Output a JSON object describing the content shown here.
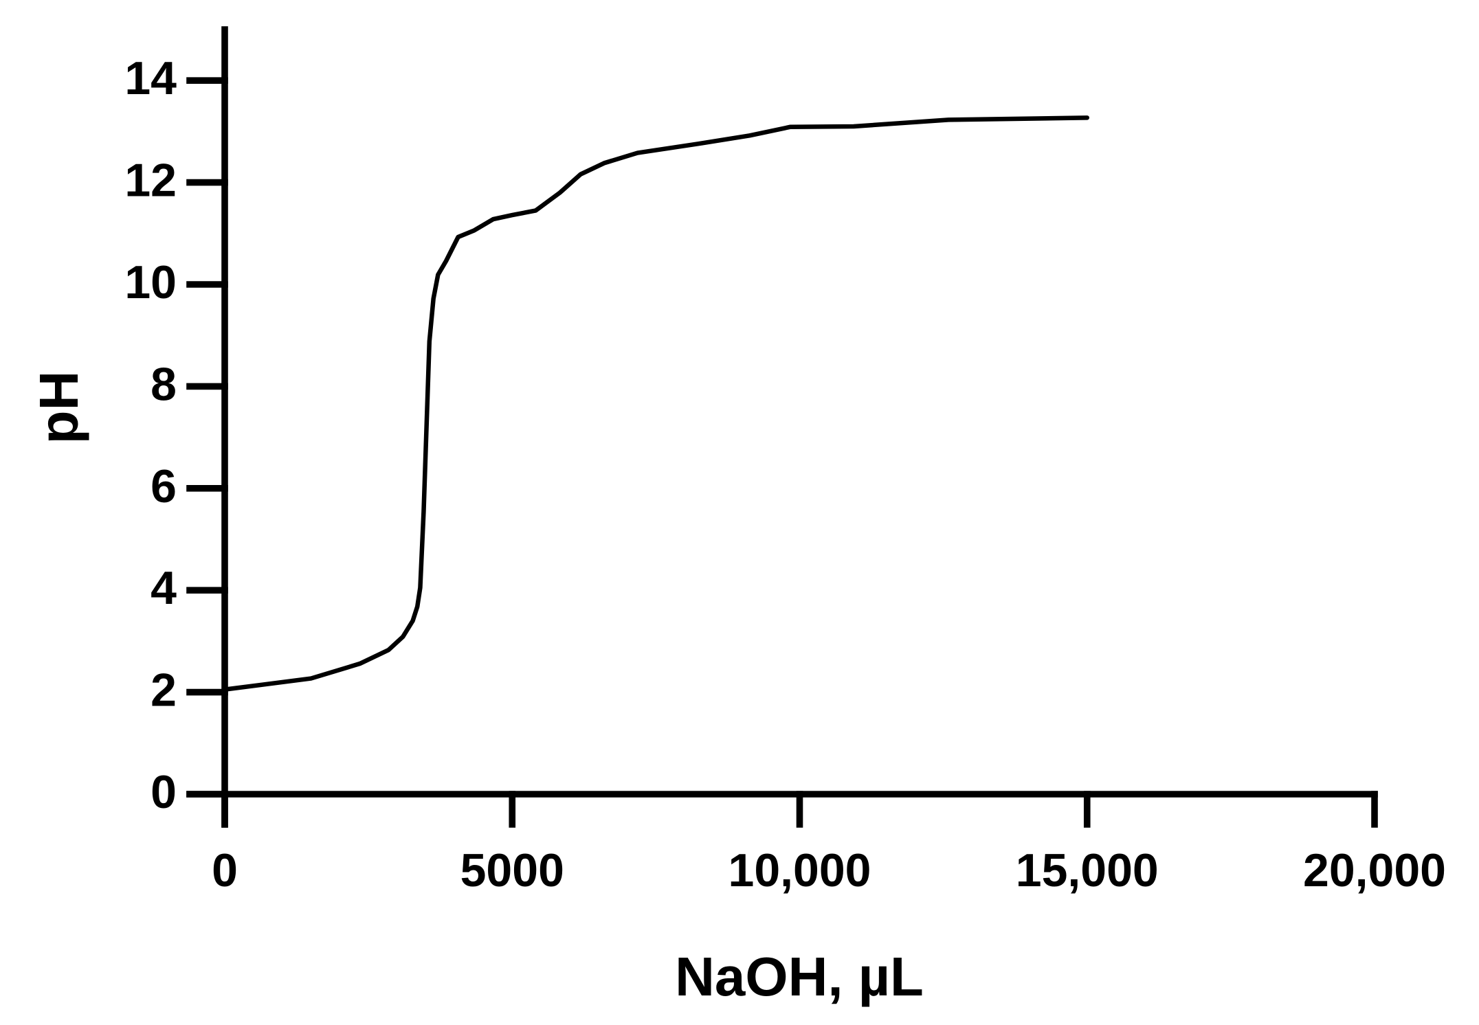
{
  "chart_data": {
    "type": "line",
    "x_label": "NaOH, µL",
    "y_label": "pH",
    "x": [
      50,
      1500,
      2350,
      2850,
      3100,
      3270,
      3350,
      3400,
      3460,
      3510,
      3560,
      3630,
      3710,
      3850,
      4060,
      4340,
      4670,
      5000,
      5410,
      5830,
      6190,
      6600,
      7180,
      8300,
      9130,
      9840,
      10940,
      12590,
      15000
    ],
    "series": [
      {
        "color": "#000000",
        "values": [
          2.06,
          2.27,
          2.56,
          2.83,
          3.09,
          3.4,
          3.68,
          4.05,
          5.54,
          7.21,
          8.88,
          9.72,
          10.19,
          10.46,
          10.93,
          11.06,
          11.28,
          11.36,
          11.45,
          11.8,
          12.16,
          12.38,
          12.58,
          12.77,
          12.92,
          13.09,
          13.1,
          13.23,
          13.27
        ]
      }
    ],
    "xlim": [
      0,
      20000
    ],
    "ylim": [
      0,
      15
    ],
    "xticks": [
      0,
      5000,
      {
        "value": 10000,
        "label": "10,000"
      },
      {
        "value": 15000,
        "label": "15,000"
      },
      {
        "value": 20000,
        "label": "20,000"
      }
    ],
    "yticks": [
      0,
      2,
      4,
      6,
      8,
      10,
      12,
      14
    ],
    "grid": false
  }
}
